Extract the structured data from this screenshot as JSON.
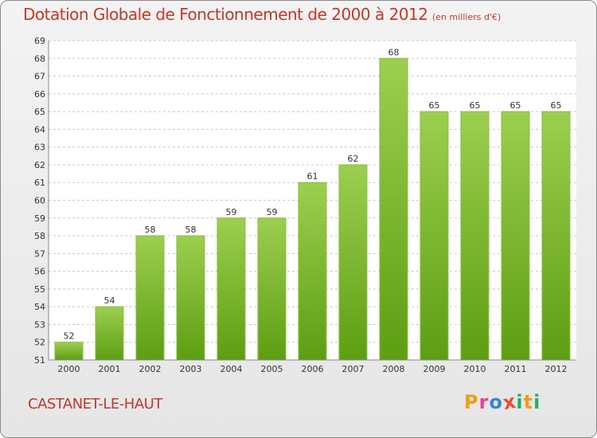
{
  "title": "Dotation Globale de Fonctionnement de 2000 à 2012",
  "subtitle": "(en milliers d'€)",
  "commune": "CASTANET-LE-HAUT",
  "logo": {
    "letters": [
      "P",
      "r",
      "o",
      "x",
      "i",
      "t",
      "i"
    ],
    "colors": [
      "#f39c12",
      "#e84393",
      "#2e86de",
      "#e74c3c",
      "#27ae60",
      "#f39c12",
      "#27ae60"
    ]
  },
  "colors": {
    "title": "#c0392b",
    "bar_light": "#9ccf4f",
    "bar_dark": "#5d9e12"
  },
  "chart_data": {
    "type": "bar",
    "categories": [
      "2000",
      "2001",
      "2002",
      "2003",
      "2004",
      "2005",
      "2006",
      "2007",
      "2008",
      "2009",
      "2010",
      "2011",
      "2012"
    ],
    "values": [
      52,
      54,
      58,
      58,
      59,
      59,
      61,
      62,
      68,
      65,
      65,
      65,
      65
    ],
    "ylim": [
      51,
      69
    ],
    "yticks": [
      51,
      52,
      53,
      54,
      55,
      56,
      57,
      58,
      59,
      60,
      61,
      62,
      63,
      64,
      65,
      66,
      67,
      68,
      69
    ],
    "grid": true,
    "data_labels": true
  }
}
